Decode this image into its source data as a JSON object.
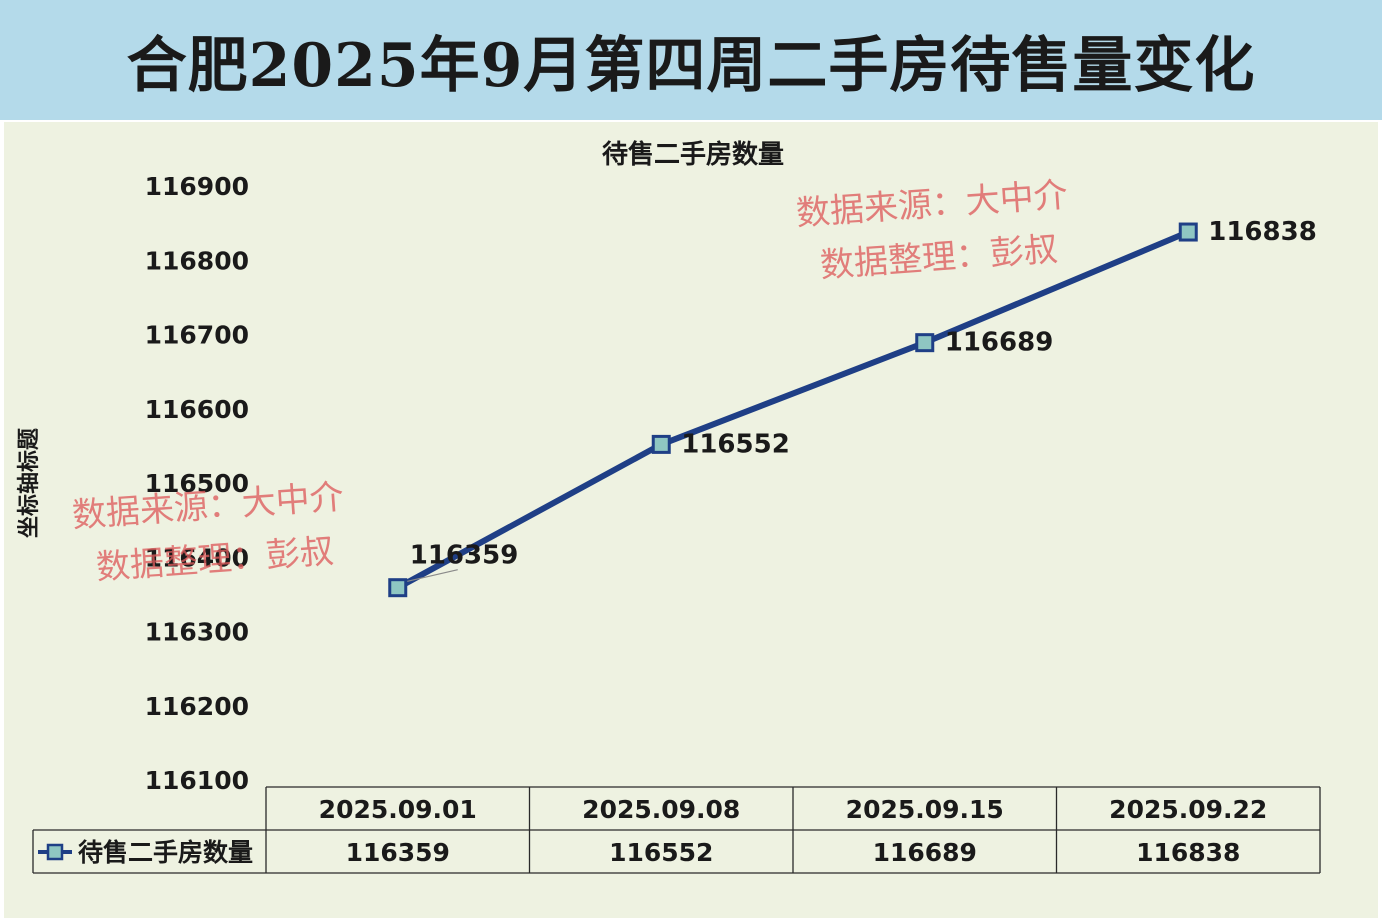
{
  "banner": {
    "title": "合肥2025年9月第四周二手房待售量变化"
  },
  "watermark": {
    "line1": "数据来源：大中介",
    "line2": "数据整理：彭叔"
  },
  "colors": {
    "banner_bg": "#b4daea",
    "plot_bg": "#eef2e1",
    "series": "#1f3f86",
    "marker_fill": "#8fc6c2",
    "watermark": "#de5c5c"
  },
  "chart_data": {
    "type": "line",
    "title": "待售二手房数量",
    "ylabel": "坐标轴标题",
    "xlabel": "",
    "categories": [
      "2025.09.01",
      "2025.09.08",
      "2025.09.15",
      "2025.09.22"
    ],
    "series": [
      {
        "name": "待售二手房数量",
        "values": [
          116359,
          116552,
          116689,
          116838
        ]
      }
    ],
    "ylim": [
      116100,
      116900
    ],
    "yticks": [
      116900,
      116800,
      116700,
      116600,
      116500,
      116400,
      116300,
      116200,
      116100
    ],
    "data_labels": [
      "116359",
      "116552",
      "116689",
      "116838"
    ],
    "legend": "data-table",
    "grid": false
  }
}
